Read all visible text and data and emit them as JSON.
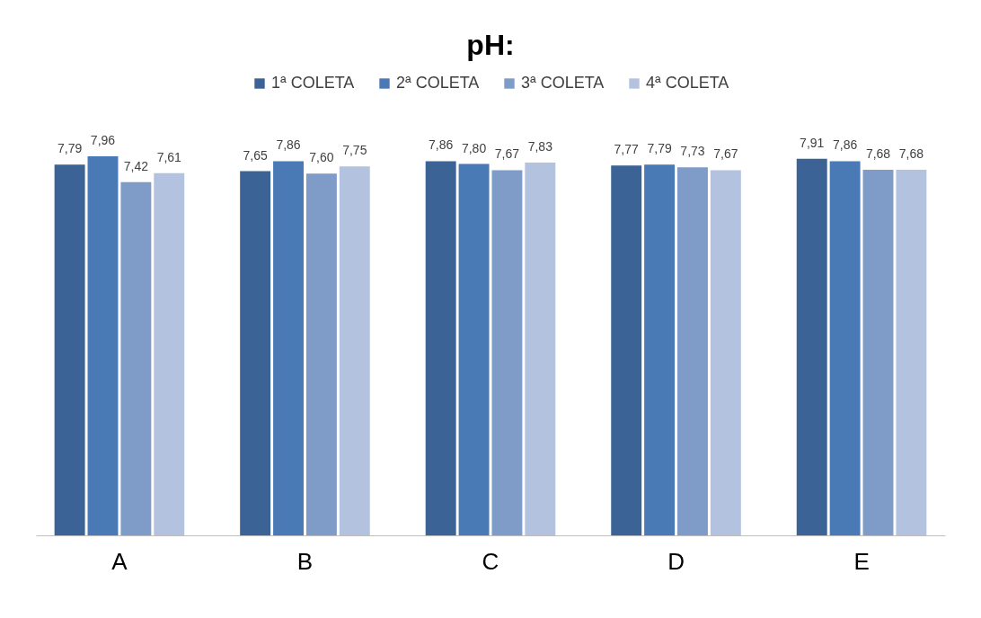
{
  "chart_data": {
    "type": "bar",
    "title": "pH:",
    "categories": [
      "A",
      "B",
      "C",
      "D",
      "E"
    ],
    "series": [
      {
        "name": "1ª COLETA",
        "color": "#3b6396",
        "values": [
          7.79,
          7.65,
          7.86,
          7.77,
          7.91
        ],
        "value_labels": [
          "7,79",
          "7,65",
          "7,86",
          "7,77",
          "7,91"
        ]
      },
      {
        "name": "2ª COLETA",
        "color": "#4a7ab5",
        "values": [
          7.96,
          7.86,
          7.8,
          7.79,
          7.86
        ],
        "value_labels": [
          "7,96",
          "7,86",
          "7,80",
          "7,79",
          "7,86"
        ]
      },
      {
        "name": "3ª COLETA",
        "color": "#7f9cc9",
        "values": [
          7.42,
          7.6,
          7.67,
          7.73,
          7.68
        ],
        "value_labels": [
          "7,42",
          "7,60",
          "7,67",
          "7,73",
          "7,68"
        ]
      },
      {
        "name": "4ª COLETA",
        "color": "#b3c3df",
        "values": [
          7.61,
          7.75,
          7.83,
          7.67,
          7.68
        ],
        "value_labels": [
          "7,61",
          "7,75",
          "7,83",
          "7,67",
          "7,68"
        ]
      }
    ],
    "tick_labels": "x",
    "grid": false,
    "legend": "top"
  }
}
